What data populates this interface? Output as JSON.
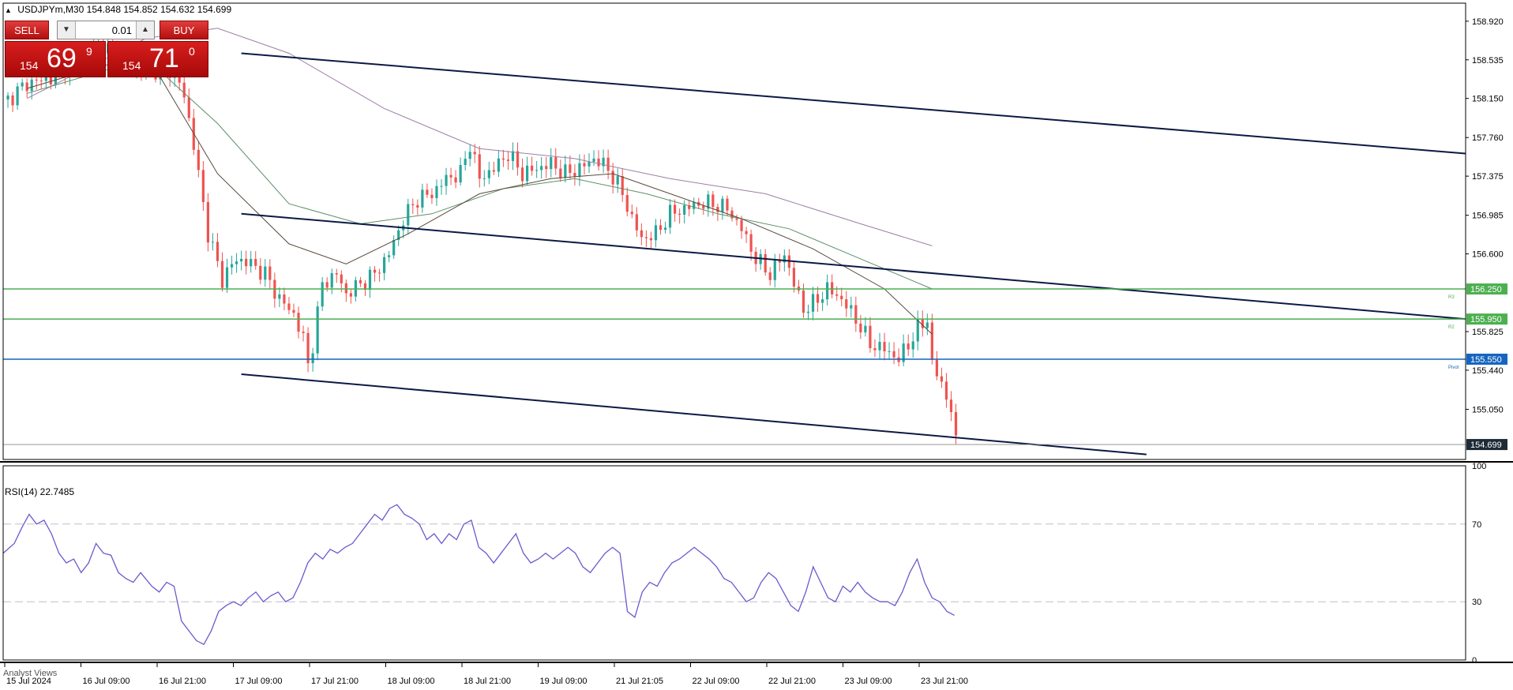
{
  "header": {
    "symbol": "USDJPYm,M30",
    "ohlc": "154.848 154.852 154.632 154.699"
  },
  "trade_panel": {
    "sell_label": "SELL",
    "buy_label": "BUY",
    "lot_value": "0.01",
    "sell_quote": {
      "prefix": "154",
      "main": "69",
      "sup": "9"
    },
    "buy_quote": {
      "prefix": "154",
      "main": "71",
      "sup": "0"
    }
  },
  "rsi_label": "RSI(14) 22.7485",
  "analyst_label": "Analyst Views",
  "colors": {
    "bull": "#26a69a",
    "bear": "#ef5350",
    "level_green": "#4caf50",
    "pivot_blue": "#1565c0",
    "ma_purple": "#9c7fa6",
    "ma_green": "#5f8f6a",
    "ma_brown": "#5a4a3a",
    "rsi_line": "#6a5acd",
    "channel": "#0b1a44"
  },
  "chart_data": [
    {
      "type": "candlestick",
      "ylim": [
        154.55,
        159.1
      ],
      "y_ticks": [
        "158.920",
        "158.535",
        "158.150",
        "157.760",
        "157.375",
        "156.985",
        "156.600",
        "156.250",
        "155.950",
        "155.825",
        "155.550",
        "155.440",
        "155.050",
        "154.699"
      ],
      "x_ticks": [
        "15 Jul 2024",
        "16 Jul 09:00",
        "16 Jul 21:00",
        "17 Jul 09:00",
        "17 Jul 21:00",
        "18 Jul 09:00",
        "18 Jul 21:00",
        "19 Jul 09:00",
        "21 Jul 21:05",
        "22 Jul 09:00",
        "22 Jul 21:00",
        "23 Jul 09:00",
        "23 Jul 21:00"
      ],
      "series_close": [
        [
          0,
          158.1
        ],
        [
          5,
          158.3
        ],
        [
          10,
          158.35
        ],
        [
          15,
          158.55
        ],
        [
          20,
          158.7
        ],
        [
          25,
          158.55
        ],
        [
          30,
          158.4
        ],
        [
          35,
          158.45
        ],
        [
          38,
          158.2
        ],
        [
          41,
          157.4
        ],
        [
          43,
          156.8
        ],
        [
          46,
          156.35
        ],
        [
          49,
          156.55
        ],
        [
          52,
          156.5
        ],
        [
          55,
          156.4
        ],
        [
          58,
          156.15
        ],
        [
          61,
          156.0
        ],
        [
          63,
          155.75
        ],
        [
          64,
          155.5
        ],
        [
          65,
          155.7
        ],
        [
          67,
          156.3
        ],
        [
          70,
          156.4
        ],
        [
          72,
          156.2
        ],
        [
          75,
          156.3
        ],
        [
          78,
          156.4
        ],
        [
          81,
          156.6
        ],
        [
          84,
          156.95
        ],
        [
          87,
          157.15
        ],
        [
          90,
          157.2
        ],
        [
          93,
          157.35
        ],
        [
          96,
          157.4
        ],
        [
          98,
          157.7
        ],
        [
          100,
          157.35
        ],
        [
          103,
          157.45
        ],
        [
          106,
          157.6
        ],
        [
          109,
          157.4
        ],
        [
          112,
          157.45
        ],
        [
          115,
          157.5
        ],
        [
          118,
          157.4
        ],
        [
          121,
          157.45
        ],
        [
          124,
          157.55
        ],
        [
          127,
          157.45
        ],
        [
          130,
          157.2
        ],
        [
          132,
          156.95
        ],
        [
          134,
          156.75
        ],
        [
          137,
          156.8
        ],
        [
          140,
          157.0
        ],
        [
          143,
          157.05
        ],
        [
          146,
          157.1
        ],
        [
          149,
          157.1
        ],
        [
          152,
          157.05
        ],
        [
          155,
          156.85
        ],
        [
          158,
          156.55
        ],
        [
          161,
          156.4
        ],
        [
          164,
          156.6
        ],
        [
          166,
          156.3
        ],
        [
          168,
          156.05
        ],
        [
          170,
          156.1
        ],
        [
          173,
          156.25
        ],
        [
          176,
          156.15
        ],
        [
          179,
          155.95
        ],
        [
          182,
          155.7
        ],
        [
          185,
          155.65
        ],
        [
          188,
          155.55
        ],
        [
          190,
          155.7
        ],
        [
          192,
          155.85
        ],
        [
          194,
          155.95
        ],
        [
          195,
          155.5
        ],
        [
          197,
          155.3
        ],
        [
          199,
          155.05
        ],
        [
          200,
          154.7
        ]
      ],
      "moving_averages": [
        {
          "points": [
            [
              5,
              158.15
            ],
            [
              30,
              158.75
            ],
            [
              45,
              158.85
            ],
            [
              60,
              158.6
            ],
            [
              80,
              158.05
            ],
            [
              100,
              157.65
            ],
            [
              120,
              157.55
            ],
            [
              140,
              157.35
            ],
            [
              160,
              157.2
            ],
            [
              180,
              156.9
            ],
            [
              195,
              156.68
            ]
          ]
        },
        {
          "points": [
            [
              5,
              158.2
            ],
            [
              30,
              158.55
            ],
            [
              45,
              157.9
            ],
            [
              60,
              157.1
            ],
            [
              75,
              156.9
            ],
            [
              90,
              157.0
            ],
            [
              105,
              157.25
            ],
            [
              120,
              157.35
            ],
            [
              135,
              157.2
            ],
            [
              150,
              157.0
            ],
            [
              165,
              156.85
            ],
            [
              180,
              156.55
            ],
            [
              195,
              156.25
            ]
          ]
        },
        {
          "points": [
            [
              5,
              158.25
            ],
            [
              30,
              158.6
            ],
            [
              45,
              157.4
            ],
            [
              60,
              156.7
            ],
            [
              72,
              156.5
            ],
            [
              85,
              156.8
            ],
            [
              100,
              157.2
            ],
            [
              115,
              157.35
            ],
            [
              128,
              157.4
            ],
            [
              140,
              157.2
            ],
            [
              155,
              156.95
            ],
            [
              170,
              156.65
            ],
            [
              185,
              156.25
            ],
            [
              195,
              155.8
            ]
          ]
        }
      ],
      "channel_lines": [
        {
          "from": [
            50,
            158.6
          ],
          "to": [
            307,
            157.6
          ]
        },
        {
          "from": [
            50,
            157.0
          ],
          "to": [
            307,
            155.95
          ]
        },
        {
          "from": [
            50,
            155.4
          ],
          "to": [
            240,
            154.6
          ]
        }
      ],
      "horizontal_levels": [
        {
          "value": 156.25,
          "label": "156.250",
          "tag": "R3",
          "kind": "green"
        },
        {
          "value": 155.95,
          "label": "155.950",
          "tag": "R2",
          "kind": "green"
        },
        {
          "value": 155.55,
          "label": "155.550",
          "tag": "Pivot",
          "kind": "blue"
        },
        {
          "value": 154.699,
          "label": "154.699",
          "tag": "",
          "kind": "current"
        }
      ]
    },
    {
      "type": "line",
      "ylim": [
        0,
        100
      ],
      "y_ticks": [
        "100",
        "70",
        "30",
        "0"
      ],
      "levels": [
        70,
        30
      ],
      "series": [
        {
          "values": [
            [
              0,
              55
            ],
            [
              3,
              60
            ],
            [
              5,
              68
            ],
            [
              7,
              75
            ],
            [
              9,
              70
            ],
            [
              11,
              72
            ],
            [
              13,
              65
            ],
            [
              15,
              55
            ],
            [
              17,
              50
            ],
            [
              19,
              52
            ],
            [
              21,
              45
            ],
            [
              23,
              50
            ],
            [
              25,
              60
            ],
            [
              27,
              55
            ],
            [
              29,
              54
            ],
            [
              31,
              45
            ],
            [
              33,
              42
            ],
            [
              35,
              40
            ],
            [
              37,
              45
            ],
            [
              40,
              38
            ],
            [
              42,
              35
            ],
            [
              44,
              40
            ],
            [
              46,
              38
            ],
            [
              48,
              20
            ],
            [
              50,
              15
            ],
            [
              52,
              10
            ],
            [
              54,
              8
            ],
            [
              56,
              15
            ],
            [
              58,
              25
            ],
            [
              60,
              28
            ],
            [
              62,
              30
            ],
            [
              64,
              28
            ],
            [
              66,
              32
            ],
            [
              68,
              35
            ],
            [
              70,
              30
            ],
            [
              72,
              33
            ],
            [
              74,
              35
            ],
            [
              76,
              30
            ],
            [
              78,
              32
            ],
            [
              80,
              40
            ],
            [
              82,
              50
            ],
            [
              84,
              55
            ],
            [
              86,
              52
            ],
            [
              88,
              57
            ],
            [
              90,
              55
            ],
            [
              92,
              58
            ],
            [
              94,
              60
            ],
            [
              96,
              65
            ],
            [
              98,
              70
            ],
            [
              100,
              75
            ],
            [
              102,
              72
            ],
            [
              104,
              78
            ],
            [
              106,
              80
            ],
            [
              108,
              75
            ],
            [
              110,
              73
            ],
            [
              112,
              70
            ],
            [
              114,
              62
            ],
            [
              116,
              65
            ],
            [
              118,
              60
            ],
            [
              120,
              65
            ],
            [
              122,
              62
            ],
            [
              124,
              70
            ],
            [
              126,
              72
            ],
            [
              128,
              58
            ],
            [
              130,
              55
            ],
            [
              132,
              50
            ],
            [
              134,
              55
            ],
            [
              136,
              60
            ],
            [
              138,
              65
            ],
            [
              140,
              55
            ],
            [
              142,
              50
            ],
            [
              144,
              52
            ],
            [
              146,
              55
            ],
            [
              148,
              52
            ],
            [
              150,
              55
            ],
            [
              152,
              58
            ],
            [
              154,
              55
            ],
            [
              156,
              48
            ],
            [
              158,
              45
            ],
            [
              160,
              50
            ],
            [
              162,
              55
            ],
            [
              164,
              58
            ],
            [
              166,
              55
            ],
            [
              168,
              25
            ],
            [
              170,
              22
            ],
            [
              172,
              35
            ],
            [
              174,
              40
            ],
            [
              176,
              38
            ],
            [
              178,
              45
            ],
            [
              180,
              50
            ],
            [
              182,
              52
            ],
            [
              184,
              55
            ],
            [
              186,
              58
            ],
            [
              188,
              55
            ],
            [
              190,
              52
            ],
            [
              192,
              48
            ],
            [
              194,
              42
            ],
            [
              196,
              40
            ],
            [
              198,
              35
            ],
            [
              200,
              30
            ],
            [
              202,
              32
            ],
            [
              204,
              40
            ],
            [
              206,
              45
            ],
            [
              208,
              42
            ],
            [
              210,
              35
            ],
            [
              212,
              28
            ],
            [
              214,
              25
            ],
            [
              216,
              35
            ],
            [
              218,
              48
            ],
            [
              220,
              40
            ],
            [
              222,
              32
            ],
            [
              224,
              30
            ],
            [
              226,
              38
            ],
            [
              228,
              35
            ],
            [
              230,
              40
            ],
            [
              232,
              35
            ],
            [
              234,
              32
            ],
            [
              236,
              30
            ],
            [
              238,
              30
            ],
            [
              240,
              28
            ],
            [
              242,
              35
            ],
            [
              244,
              45
            ],
            [
              246,
              52
            ],
            [
              248,
              40
            ],
            [
              250,
              32
            ],
            [
              252,
              30
            ],
            [
              254,
              25
            ],
            [
              256,
              23
            ]
          ]
        }
      ]
    }
  ]
}
